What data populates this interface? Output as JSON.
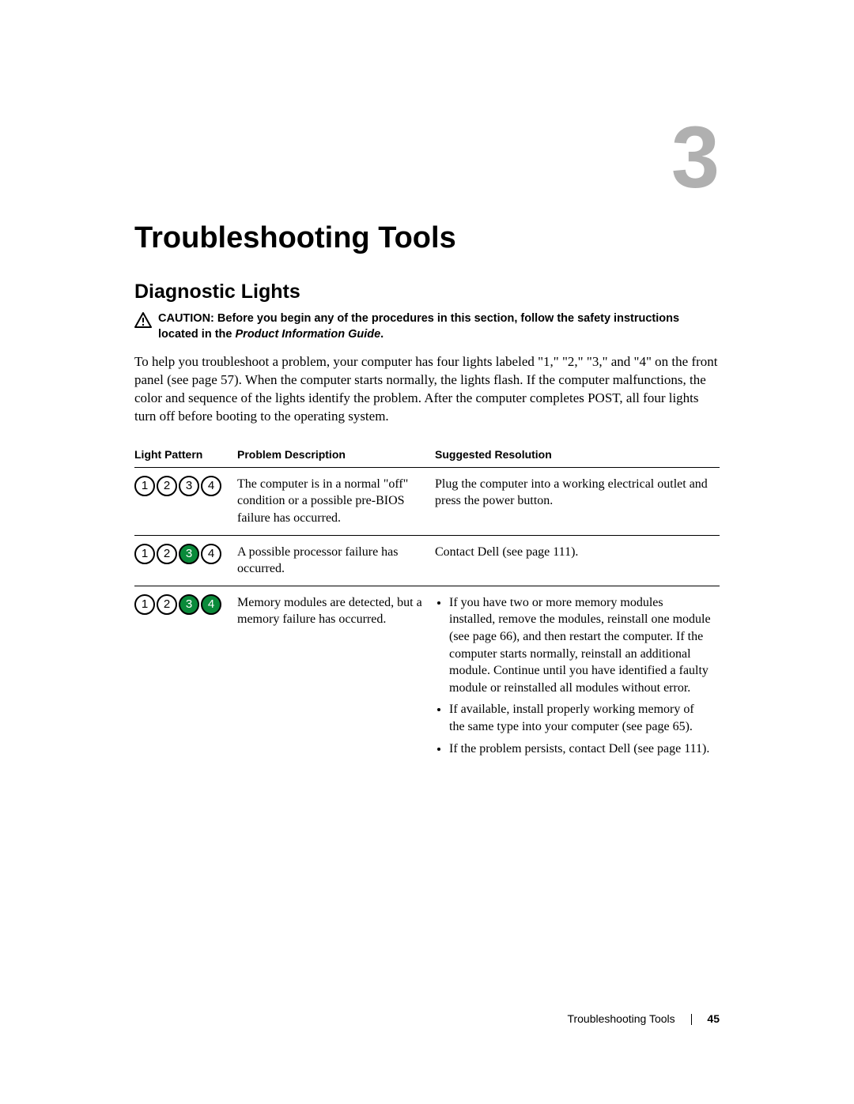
{
  "chapter_number": "3",
  "title": "Troubleshooting Tools",
  "section_title": "Diagnostic Lights",
  "caution_label": "CAUTION:",
  "caution_text_1": " Before you begin any of the procedures in this section, follow the safety instructions located in the ",
  "caution_text_em": "Product Information Guide",
  "caution_text_2": ".",
  "intro": "To help you troubleshoot a problem, your computer has four lights labeled \"1,\" \"2,\" \"3,\" and \"4\" on the front panel (see page 57). When the computer starts normally, the lights flash. If the computer malfunctions, the color and sequence of the lights identify the problem. After the computer completes POST, all four lights turn off before booting to the operating system.",
  "table": {
    "headers": {
      "col1": "Light Pattern",
      "col2": "Problem Description",
      "col3": "Suggested Resolution"
    },
    "rows": [
      {
        "lights": [
          {
            "n": "1",
            "on": false
          },
          {
            "n": "2",
            "on": false
          },
          {
            "n": "3",
            "on": false
          },
          {
            "n": "4",
            "on": false
          }
        ],
        "problem": "The computer is in a normal \"off\" condition or a possible pre-BIOS failure has occurred.",
        "resolution_text": "Plug the computer into a working electrical outlet and press the power button."
      },
      {
        "lights": [
          {
            "n": "1",
            "on": false
          },
          {
            "n": "2",
            "on": false
          },
          {
            "n": "3",
            "on": true
          },
          {
            "n": "4",
            "on": false
          }
        ],
        "problem": "A possible processor failure has occurred.",
        "resolution_text": "Contact Dell (see page 111)."
      },
      {
        "lights": [
          {
            "n": "1",
            "on": false
          },
          {
            "n": "2",
            "on": false
          },
          {
            "n": "3",
            "on": true
          },
          {
            "n": "4",
            "on": true
          }
        ],
        "problem": "Memory modules are detected, but a memory failure has occurred.",
        "resolution_list": [
          "If you have two or more memory modules installed, remove the modules, reinstall one module (see page 66), and then restart the computer. If the computer starts normally, reinstall an additional module. Continue until you have identified a faulty module or reinstalled all modules without error.",
          "If available, install properly working memory of the same type into your computer (see page 65).",
          "If the problem persists, contact Dell (see page 111)."
        ]
      }
    ]
  },
  "light_colors": {
    "on_bg": "#0a8a3a",
    "off_bg": "#ffffff",
    "border": "#000000"
  },
  "footer": {
    "section": "Troubleshooting Tools",
    "page": "45"
  }
}
